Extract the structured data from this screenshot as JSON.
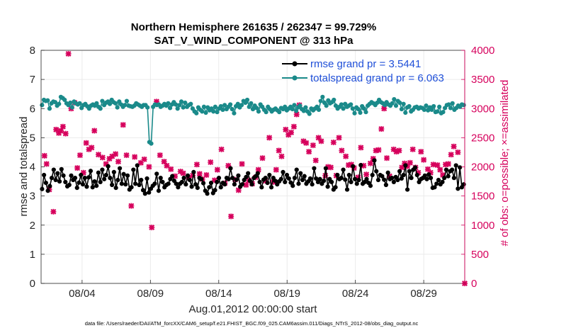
{
  "chart_data": {
    "type": "line",
    "title": "Northern Hemisphere 261635 / 262347 = 99.729%",
    "subtitle": "SAT_V_WIND_COMPONENT @ 313 hPa",
    "xlabel": "Aug.01,2012 00:00:00 start",
    "ylabel_left": "rmse and totalspread",
    "ylabel_right": "# of obs: o=possible; ×=assimilated",
    "footnote": "data file: /Users/raeder/DAI/ATM_forcXX/CAM6_setup/f.e21.FHIST_BGC.f09_025.CAM6assim.011/Diags_NTrS_2012-08/obs_diag_output.nc",
    "xlim": [
      1,
      32
    ],
    "ylim_left": [
      0,
      8
    ],
    "ylim_right": [
      0,
      4000
    ],
    "x_ticks": [
      4,
      9,
      14,
      19,
      24,
      29
    ],
    "x_tick_labels": [
      "08/04",
      "08/09",
      "08/14",
      "08/19",
      "08/24",
      "08/29"
    ],
    "y_left_ticks": [
      "0",
      "1",
      "2",
      "3",
      "4",
      "5",
      "6",
      "7",
      "8"
    ],
    "y_right_ticks": [
      "0",
      "500",
      "1000",
      "1500",
      "2000",
      "2500",
      "3000",
      "3500",
      "4000"
    ],
    "grid": true,
    "legend_position": "top-right",
    "series": [
      {
        "name": "rmse grand pr = 3.5441",
        "axis": "left",
        "color": "#000000",
        "marker": "circle",
        "values": [
          3.24,
          3.72,
          3.45,
          3.18,
          3.34,
          3.62,
          3.9,
          3.55,
          3.78,
          3.5,
          3.92,
          3.7,
          3.48,
          3.33,
          3.38,
          3.7,
          3.55,
          3.62,
          3.28,
          3.46,
          3.72,
          3.4,
          3.62,
          3.32,
          3.64,
          3.86,
          3.3,
          3.5,
          3.35,
          3.8,
          3.48,
          3.9,
          3.58,
          3.72,
          4.02,
          3.62,
          3.38,
          3.82,
          3.28,
          3.55,
          3.95,
          3.42,
          3.75,
          3.4,
          3.7,
          3.22,
          3.3,
          3.9,
          3.42,
          4.05,
          3.38,
          3.55,
          3.2,
          3.08,
          3.6,
          3.12,
          3.25,
          3.35,
          3.42,
          3.76,
          3.18,
          3.62,
          3.48,
          3.3,
          3.38,
          3.42,
          3.58,
          3.68,
          3.52,
          3.42,
          3.3,
          3.42,
          3.48,
          3.62,
          3.4,
          3.7,
          3.55,
          3.32,
          3.82,
          3.4,
          3.28,
          3.62,
          3.58,
          3.44,
          3.18,
          3.08,
          3.3,
          3.45,
          3.1,
          3.2,
          3.48,
          3.62,
          3.3,
          3.45,
          3.4,
          3.62,
          3.58,
          3.95,
          3.62,
          3.4,
          3.56,
          3.7,
          3.32,
          3.4,
          3.55,
          3.65,
          3.78,
          3.52,
          3.4,
          3.62,
          3.68,
          3.78,
          3.48,
          3.3,
          3.56,
          3.62,
          3.45,
          3.72,
          3.3,
          3.62,
          3.52,
          3.4,
          3.5,
          3.58,
          3.82,
          3.48,
          3.72,
          3.6,
          3.46,
          3.35,
          3.62,
          3.9,
          3.42,
          3.78,
          3.55,
          3.68,
          3.42,
          3.5,
          3.6,
          3.4,
          3.95,
          3.6,
          3.48,
          3.58,
          3.42,
          3.52,
          3.95,
          3.32,
          3.58,
          3.48,
          3.22,
          3.3,
          3.72,
          3.58,
          3.62,
          3.9,
          3.56,
          3.22,
          3.72,
          3.48,
          4.02,
          3.58,
          3.42,
          3.55,
          4.06,
          3.42,
          3.48,
          3.58,
          3.45,
          3.35,
          3.72,
          4.22,
          3.85,
          3.55,
          3.72,
          3.68,
          3.56,
          3.38,
          3.8,
          3.58,
          3.62,
          3.48,
          3.65,
          3.55,
          3.85,
          3.6,
          3.72,
          4.05,
          3.22,
          3.85,
          3.62,
          3.9,
          3.98,
          3.72,
          3.48,
          3.58,
          3.62,
          3.7,
          3.58,
          3.74,
          3.62,
          3.28,
          3.3,
          3.42,
          3.55,
          3.4,
          3.48,
          3.62,
          3.9,
          3.68,
          3.85,
          3.9,
          3.62,
          4.05,
          3.25,
          3.98,
          3.3,
          3.4
        ]
      },
      {
        "name": "totalspread grand pr = 6.063",
        "axis": "left",
        "color": "#1a8a8a",
        "marker": "circle",
        "values": [
          6.12,
          6.3,
          6.26,
          6.28,
          6.0,
          6.18,
          6.24,
          6.22,
          6.1,
          6.16,
          6.4,
          6.36,
          6.3,
          6.18,
          6.12,
          6.2,
          6.04,
          6.24,
          6.18,
          6.14,
          6.18,
          6.02,
          6.12,
          6.16,
          6.08,
          6.0,
          6.1,
          6.14,
          6.1,
          6.18,
          6.06,
          6.0,
          6.26,
          6.12,
          6.2,
          6.24,
          6.16,
          6.3,
          6.22,
          6.18,
          6.04,
          6.24,
          6.14,
          6.06,
          6.12,
          6.26,
          6.1,
          6.08,
          6.06,
          6.1,
          6.18,
          6.14,
          6.1,
          6.06,
          6.12,
          6.12,
          6.04,
          4.85,
          4.8,
          6.06,
          6.14,
          6.12,
          6.14,
          6.06,
          6.1,
          6.16,
          6.1,
          6.18,
          6.02,
          6.14,
          6.22,
          6.14,
          6.0,
          6.12,
          6.24,
          6.04,
          6.2,
          6.06,
          6.12,
          6.16,
          6.0,
          5.9,
          5.84,
          6.04,
          5.96,
          5.9,
          6.06,
          5.86,
          6.04,
          5.94,
          6.0,
          5.9,
          6.06,
          5.88,
          6.0,
          6.08,
          5.96,
          6.12,
          5.98,
          6.06,
          6.14,
          5.98,
          5.84,
          6.08,
          6.16,
          6.04,
          6.12,
          6.26,
          6.2,
          6.3,
          6.06,
          6.18,
          5.98,
          6.1,
          6.02,
          5.9,
          6.14,
          6.06,
          5.96,
          5.88,
          6.06,
          5.98,
          5.9,
          5.96,
          6.0,
          5.94,
          5.88,
          6.02,
          5.98,
          6.06,
          5.94,
          6.0,
          6.06,
          5.98,
          6.12,
          5.92,
          6.04,
          6.1,
          5.98,
          5.92,
          6.04,
          5.9,
          5.82,
          6.0,
          5.94,
          6.0,
          6.06,
          5.96,
          6.26,
          6.4,
          6.2,
          6.1,
          6.28,
          6.18,
          6.22,
          6.3,
          6.1,
          6.0,
          6.06,
          6.14,
          6.0,
          6.16,
          6.06,
          6.1,
          6.14,
          6.0,
          5.84,
          6.04,
          5.98,
          5.86,
          6.08,
          6.0,
          5.88,
          6.1,
          6.16,
          6.22,
          6.18,
          6.12,
          6.2,
          6.3,
          6.22,
          6.18,
          6.12,
          6.22,
          6.14,
          6.1,
          6.18,
          6.32,
          6.1,
          6.26,
          6.2,
          5.98,
          6.16,
          5.86,
          6.04,
          6.08,
          5.9,
          5.96,
          6.04,
          6.06,
          6.0,
          6.04,
          6.02,
          5.96,
          6.1,
          5.94,
          6.04,
          5.96,
          6.08,
          5.88,
          5.9,
          6.06,
          5.84,
          5.88,
          6.02,
          6.12,
          6.14,
          6.02,
          6.18,
          5.96,
          6.02,
          6.1,
          6.06,
          6.14,
          6.12
        ]
      },
      {
        "name": "# of obs assimilated",
        "axis": "right",
        "color": "#d6005c",
        "marker": "x",
        "points": [
          [
            1.25,
            2190
          ],
          [
            1.4,
            2050
          ],
          [
            1.6,
            1610
          ],
          [
            1.9,
            1230
          ],
          [
            2.1,
            2640
          ],
          [
            2.3,
            2580
          ],
          [
            2.45,
            2620
          ],
          [
            2.6,
            2690
          ],
          [
            2.8,
            2570
          ],
          [
            3.0,
            3940
          ],
          [
            3.2,
            3000
          ],
          [
            3.45,
            3100
          ],
          [
            3.65,
            1980
          ],
          [
            3.85,
            2200
          ],
          [
            4.1,
            1900
          ],
          [
            4.3,
            2410
          ],
          [
            4.5,
            2300
          ],
          [
            4.7,
            2330
          ],
          [
            4.9,
            2620
          ],
          [
            5.2,
            2210
          ],
          [
            5.5,
            2160
          ],
          [
            5.75,
            2050
          ],
          [
            6.0,
            2140
          ],
          [
            6.2,
            2180
          ],
          [
            6.45,
            2220
          ],
          [
            6.65,
            2090
          ],
          [
            7.0,
            2720
          ],
          [
            7.25,
            2200
          ],
          [
            7.6,
            1330
          ],
          [
            7.85,
            2170
          ],
          [
            8.3,
            2070
          ],
          [
            8.55,
            2130
          ],
          [
            8.9,
            2000
          ],
          [
            9.1,
            960
          ],
          [
            9.45,
            3120
          ],
          [
            9.7,
            2200
          ],
          [
            10.0,
            2090
          ],
          [
            10.2,
            2020
          ],
          [
            10.5,
            1960
          ],
          [
            10.8,
            1840
          ],
          [
            11.2,
            1920
          ],
          [
            11.4,
            1890
          ],
          [
            11.8,
            1810
          ],
          [
            12.1,
            1850
          ],
          [
            12.4,
            2040
          ],
          [
            12.6,
            1880
          ],
          [
            12.8,
            1790
          ],
          [
            13.1,
            1860
          ],
          [
            13.4,
            2080
          ],
          [
            13.7,
            1770
          ],
          [
            13.9,
            1950
          ],
          [
            14.2,
            2300
          ],
          [
            14.45,
            1720
          ],
          [
            14.7,
            2020
          ],
          [
            14.9,
            1150
          ],
          [
            15.2,
            1780
          ],
          [
            15.45,
            1600
          ],
          [
            15.7,
            2050
          ],
          [
            16.0,
            1690
          ],
          [
            16.2,
            1770
          ],
          [
            16.45,
            1710
          ],
          [
            16.7,
            1820
          ],
          [
            16.9,
            1950
          ],
          [
            17.2,
            2150
          ],
          [
            17.4,
            1760
          ],
          [
            17.7,
            2500
          ],
          [
            18.0,
            1740
          ],
          [
            18.2,
            1950
          ],
          [
            18.4,
            2280
          ],
          [
            18.6,
            2180
          ],
          [
            18.9,
            2640
          ],
          [
            19.1,
            2550
          ],
          [
            19.3,
            2590
          ],
          [
            19.5,
            2690
          ],
          [
            19.7,
            2900
          ],
          [
            19.9,
            3060
          ],
          [
            20.2,
            2440
          ],
          [
            20.4,
            2410
          ],
          [
            20.6,
            2260
          ],
          [
            20.9,
            2370
          ],
          [
            21.1,
            2110
          ],
          [
            21.3,
            2500
          ],
          [
            21.5,
            2440
          ],
          [
            21.8,
            1850
          ],
          [
            22.0,
            2000
          ],
          [
            22.2,
            1990
          ],
          [
            22.4,
            2420
          ],
          [
            22.6,
            1850
          ],
          [
            22.8,
            2500
          ],
          [
            23.0,
            2280
          ],
          [
            23.3,
            2180
          ],
          [
            23.5,
            2030
          ],
          [
            23.7,
            2040
          ],
          [
            23.9,
            1980
          ],
          [
            24.2,
            1820
          ],
          [
            24.4,
            2330
          ],
          [
            24.6,
            2020
          ],
          [
            24.8,
            1870
          ],
          [
            25.1,
            2060
          ],
          [
            25.3,
            2140
          ],
          [
            25.5,
            2280
          ],
          [
            25.7,
            2290
          ],
          [
            25.9,
            2650
          ],
          [
            26.1,
            3000
          ],
          [
            26.3,
            2150
          ],
          [
            26.5,
            1840
          ],
          [
            26.8,
            2300
          ],
          [
            27.0,
            2260
          ],
          [
            27.2,
            2280
          ],
          [
            27.4,
            1990
          ],
          [
            27.6,
            2060
          ],
          [
            27.8,
            2010
          ],
          [
            28.0,
            2070
          ],
          [
            28.2,
            2300
          ],
          [
            28.4,
            1990
          ],
          [
            28.6,
            1900
          ],
          [
            28.8,
            2260
          ],
          [
            29.0,
            2120
          ],
          [
            29.3,
            1960
          ],
          [
            29.5,
            1900
          ],
          [
            29.7,
            2040
          ],
          [
            30.0,
            2030
          ],
          [
            30.2,
            1950
          ],
          [
            30.4,
            1860
          ],
          [
            30.6,
            2040
          ],
          [
            30.8,
            2050
          ],
          [
            31.0,
            2210
          ],
          [
            31.2,
            2350
          ],
          [
            31.5,
            2250
          ],
          [
            32.0,
            0
          ]
        ]
      }
    ]
  }
}
